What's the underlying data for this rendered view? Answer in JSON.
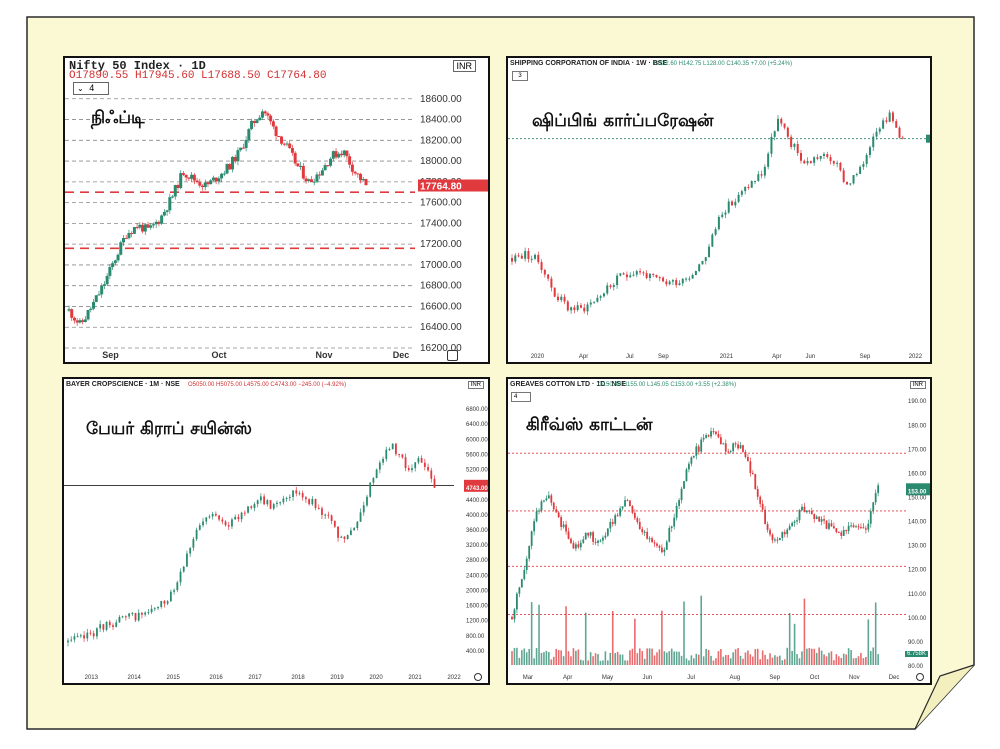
{
  "colors": {
    "page_bg": "#fbf8d4",
    "frame": "#2a2a2a",
    "up": "#2a8a6f",
    "down": "#e0393e",
    "price_tag": "#e0393e",
    "level": "#e0393e",
    "grid": "#8a8a8a"
  },
  "charts": [
    {
      "tamil_label": "நிஃப்டி",
      "symbol": "Nifty 50 Index · 1D",
      "ohlc": "O17890.55 H17945.60 L17688.50 C17764.80",
      "interval_box": "4",
      "currency": "INR",
      "last_price": "17764.80",
      "icon": "settings-icon"
    },
    {
      "tamil_label": "ஷிப்பிங் கார்ப்பரேஷன்",
      "symbol": "SHIPPING CORPORATION OF INDIA · 1W · BSE",
      "ohlc": "O132.60 H142.75 L128.00 C140.35 +7.00 (+5.24%)",
      "interval_box": "3"
    },
    {
      "tamil_label": "பேயர் கிராப் சயின்ஸ்",
      "symbol": "BAYER CROPSCIENCE · 1M · NSE",
      "ohlc": "O5050.00 H5075.00 L4575.00 C4743.00 −245.00 (−4.92%)",
      "currency": "INR",
      "last_price": "4743.00",
      "icon": "settings-icon"
    },
    {
      "tamil_label": "கிரீவ்ஸ் காட்டன்",
      "symbol": "GREAVES COTTON LTD · 1D · NSE",
      "ohlc": "O150.40 H155.00 L145.05 C153.00 +3.55 (+2.38%)",
      "interval_box": "4",
      "currency": "INR",
      "last_price": "153.00",
      "volume_tag": "6.758K",
      "icon": "settings-icon"
    }
  ],
  "chart_data": [
    {
      "type": "candlestick",
      "title": "Nifty 50 Index · 1D",
      "ylim": [
        16200,
        18800
      ],
      "y_ticks": [
        "18600.00",
        "18400.00",
        "18200.00",
        "18000.00",
        "17800.00",
        "17600.00",
        "17400.00",
        "17200.00",
        "17000.00",
        "16800.00",
        "16600.00",
        "16400.00",
        "16200.00"
      ],
      "x_ticks": [
        "Sep",
        "Oct",
        "Nov",
        "Dec"
      ],
      "x_tick_pos": [
        0.13,
        0.44,
        0.74,
        0.96
      ],
      "levels": [
        17700,
        17160
      ],
      "last": 17764.8,
      "close_path": [
        16560,
        16420,
        16600,
        16800,
        17050,
        17300,
        17380,
        17330,
        17450,
        17650,
        17900,
        17820,
        17760,
        17850,
        17950,
        18100,
        18350,
        18500,
        18300,
        18150,
        17950,
        17800,
        17900,
        18050,
        18100,
        17900,
        17764.8
      ],
      "x_end": 0.86,
      "seed": 11,
      "grid_style": "dashed"
    },
    {
      "type": "candlestick",
      "title": "SHIPPING CORPORATION OF INDIA · 1W · BSE",
      "ylim": [
        40,
        170
      ],
      "x_ticks": [
        "2020",
        "Apr",
        "Jul",
        "Sep",
        "2021",
        "Apr",
        "Jun",
        "Sep",
        "2022"
      ],
      "x_tick_pos": [
        0.07,
        0.18,
        0.29,
        0.37,
        0.52,
        0.64,
        0.72,
        0.85,
        0.97
      ],
      "levels": [
        140.35
      ],
      "last": 140.35,
      "close_path": [
        82,
        84,
        80,
        65,
        58,
        57,
        62,
        68,
        74,
        76,
        72,
        70,
        71,
        75,
        85,
        105,
        110,
        118,
        124,
        150,
        138,
        128,
        132,
        130,
        118,
        125,
        145,
        152,
        140.35
      ],
      "x_end": 0.94,
      "seed": 23,
      "grid_style": "none"
    },
    {
      "type": "candlestick",
      "title": "BAYER CROPSCIENCE · 1M · NSE",
      "ylim": [
        0,
        7200
      ],
      "y_ticks": [
        "6800.00",
        "6400.00",
        "6000.00",
        "5600.00",
        "5200.00",
        "4800.00",
        "4400.00",
        "4000.00",
        "3600.00",
        "3200.00",
        "2800.00",
        "2400.00",
        "2000.00",
        "1600.00",
        "1200.00",
        "800.00",
        "400.00"
      ],
      "x_ticks": [
        "2013",
        "2014",
        "2015",
        "2016",
        "2017",
        "2018",
        "2019",
        "2020",
        "2021",
        "2022"
      ],
      "x_tick_pos": [
        0.07,
        0.18,
        0.28,
        0.39,
        0.49,
        0.6,
        0.7,
        0.8,
        0.9,
        1.0
      ],
      "levels": [
        4750
      ],
      "last": 4743.0,
      "close_path": [
        600,
        700,
        900,
        1100,
        1200,
        1300,
        1400,
        1600,
        2200,
        3200,
        3800,
        4000,
        3700,
        4100,
        4400,
        4200,
        4500,
        4600,
        4300,
        4000,
        3300,
        3500,
        4500,
        5500,
        5800,
        5200,
        5400,
        4743
      ],
      "x_end": 0.95,
      "seed": 37,
      "grid_style": "none"
    },
    {
      "type": "candlestick",
      "title": "GREAVES COTTON LTD · 1D · NSE",
      "ylim": [
        80,
        193
      ],
      "y_ticks": [
        "190.00",
        "180.00",
        "170.00",
        "160.00",
        "150.00",
        "140.00",
        "130.00",
        "120.00",
        "110.00",
        "100.00",
        "90.00",
        "80.00"
      ],
      "x_ticks": [
        "Mar",
        "Apr",
        "May",
        "Jun",
        "Jul",
        "Aug",
        "Sep",
        "Oct",
        "Nov",
        "Dec"
      ],
      "x_tick_pos": [
        0.05,
        0.15,
        0.25,
        0.35,
        0.46,
        0.57,
        0.67,
        0.77,
        0.87,
        0.97
      ],
      "levels": [
        168,
        144,
        121,
        101
      ],
      "last": 153.0,
      "close_path": [
        100,
        120,
        145,
        150,
        138,
        128,
        135,
        130,
        140,
        150,
        138,
        130,
        128,
        145,
        165,
        172,
        178,
        170,
        172,
        160,
        140,
        130,
        138,
        145,
        140,
        138,
        135,
        138,
        136,
        153
      ],
      "x_end": 0.93,
      "seed": 51,
      "volume": true,
      "grid_style": "none"
    }
  ]
}
